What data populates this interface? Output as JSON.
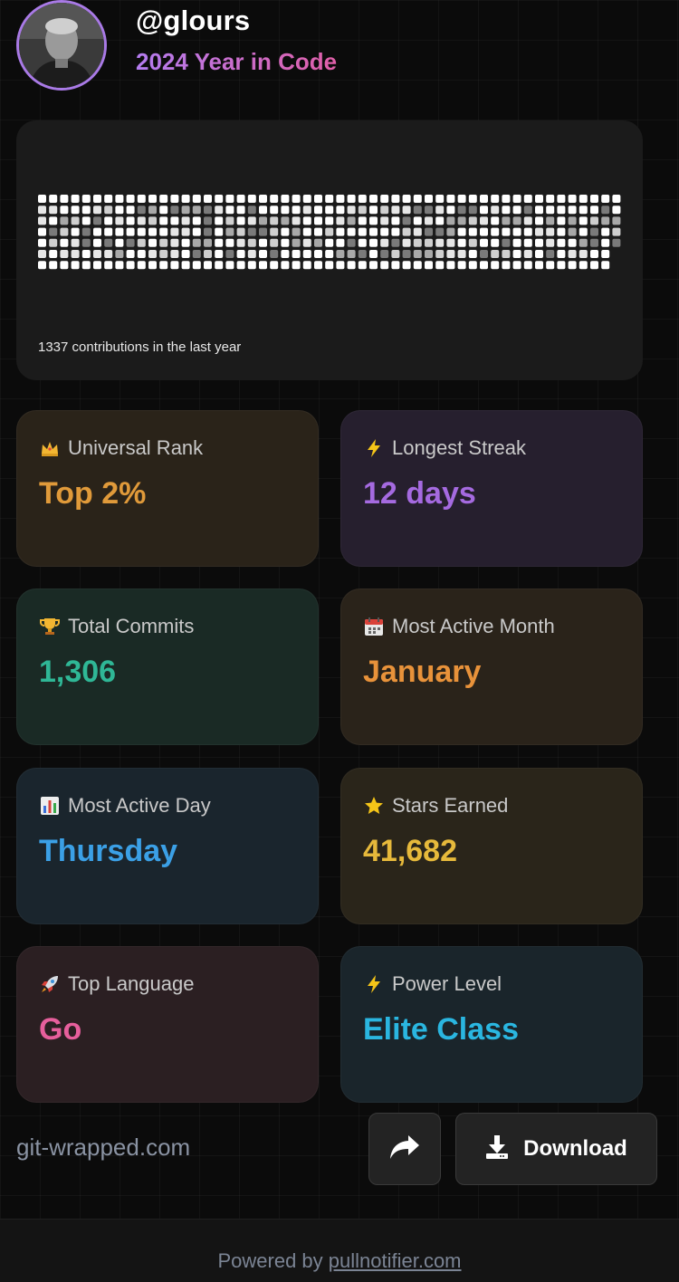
{
  "profile": {
    "handle": "@glours",
    "subtitle": "2024 Year in Code"
  },
  "contributions": {
    "label": "1337 contributions in the last year"
  },
  "stats": [
    {
      "icon": "crown-icon",
      "label": "Universal Rank",
      "value": "Top 2%",
      "color": "#e09a3a",
      "bg": "#2a2319"
    },
    {
      "icon": "lightning-icon",
      "label": "Longest Streak",
      "value": "12 days",
      "color": "#a56ae0",
      "bg": "#261f2e"
    },
    {
      "icon": "trophy-icon",
      "label": "Total Commits",
      "value": "1,306",
      "color": "#2fb796",
      "bg": "#1a2a25"
    },
    {
      "icon": "calendar-icon",
      "label": "Most Active Month",
      "value": "January",
      "color": "#e8923a",
      "bg": "#2a231a"
    },
    {
      "icon": "bar-chart-icon",
      "label": "Most Active Day",
      "value": "Thursday",
      "color": "#3ba0e6",
      "bg": "#1a252d"
    },
    {
      "icon": "star-icon",
      "label": "Stars Earned",
      "value": "41,682",
      "color": "#e6b93b",
      "bg": "#2a251a"
    },
    {
      "icon": "rocket-icon",
      "label": "Top Language",
      "value": "Go",
      "color": "#e65f9c",
      "bg": "#2b1f22"
    },
    {
      "icon": "lightning-icon",
      "label": "Power Level",
      "value": "Elite Class",
      "color": "#2ab6e0",
      "bg": "#1a252b"
    }
  ],
  "footer": {
    "site": "git-wrapped.com",
    "download_label": "Download",
    "powered_prefix": "Powered by ",
    "powered_link": "pullnotifier.com"
  }
}
